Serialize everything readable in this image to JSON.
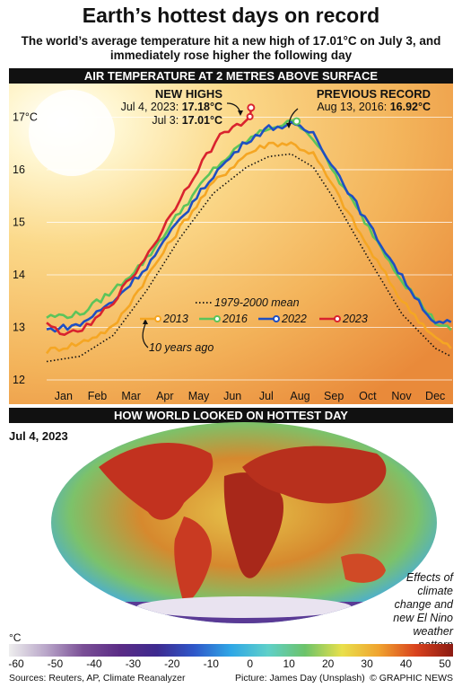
{
  "header": {
    "title": "Earth’s hottest days on record",
    "subtitle": "The world’s average temperature hit a new high of 17.01°C on July 3, and immediately rose higher the following day"
  },
  "chart_section": {
    "heading": "AIR TEMPERATURE AT 2 METRES ABOVE SURFACE"
  },
  "annotations": {
    "new_highs_heading": "NEW HIGHS",
    "jul4_label": "Jul 4, 2023:",
    "jul4_value": "17.18°C",
    "jul3_label": "Jul 3:",
    "jul3_value": "17.01°C",
    "previous_heading": "PREVIOUS RECORD",
    "previous_label": "Aug 13, 2016:",
    "previous_value": "16.92°C",
    "ten_years_ago": "10 years ago"
  },
  "chart_data": {
    "type": "line",
    "ylabel": "°C",
    "ylim": [
      12,
      17.4
    ],
    "yticks": [
      "12",
      "13",
      "14",
      "15",
      "16",
      "17°C"
    ],
    "xlim": [
      0,
      365
    ],
    "months": [
      "Jan",
      "Feb",
      "Mar",
      "Apr",
      "May",
      "Jun",
      "Jul",
      "Aug",
      "Sep",
      "Oct",
      "Nov",
      "Dec"
    ],
    "grid": "horizontal",
    "legend_position": "center-right",
    "series": [
      {
        "name": "1979-2000 mean",
        "color": "#111111",
        "style": "dotted",
        "x": [
          0,
          30,
          60,
          90,
          120,
          150,
          180,
          200,
          220,
          240,
          260,
          290,
          320,
          350,
          364
        ],
        "y": [
          12.35,
          12.45,
          12.85,
          13.7,
          14.7,
          15.55,
          16.05,
          16.25,
          16.3,
          16.05,
          15.4,
          14.3,
          13.25,
          12.6,
          12.45
        ]
      },
      {
        "name": "2013",
        "color": "#f5a623",
        "style": "solid",
        "x": [
          0,
          30,
          60,
          90,
          120,
          150,
          180,
          200,
          220,
          240,
          260,
          290,
          320,
          350,
          364
        ],
        "y": [
          12.55,
          12.7,
          13.0,
          13.95,
          14.9,
          15.75,
          16.3,
          16.5,
          16.5,
          16.3,
          15.6,
          14.5,
          13.5,
          12.8,
          12.6
        ]
      },
      {
        "name": "2016",
        "color": "#5cc45a",
        "style": "solid",
        "x": [
          0,
          30,
          60,
          90,
          120,
          150,
          180,
          200,
          225,
          240,
          260,
          290,
          320,
          350,
          364
        ],
        "y": [
          13.2,
          13.25,
          13.7,
          14.3,
          15.2,
          16.0,
          16.55,
          16.8,
          16.92,
          16.6,
          15.9,
          14.9,
          13.9,
          13.1,
          12.95
        ]
      },
      {
        "name": "2022",
        "color": "#1f4fc2",
        "style": "solid",
        "x": [
          0,
          30,
          60,
          90,
          120,
          150,
          180,
          200,
          220,
          240,
          260,
          290,
          320,
          350,
          364
        ],
        "y": [
          12.95,
          13.05,
          13.5,
          14.15,
          15.05,
          15.9,
          16.55,
          16.8,
          16.85,
          16.7,
          16.0,
          14.95,
          13.95,
          13.05,
          13.1
        ]
      },
      {
        "name": "2023",
        "color": "#d9232e",
        "style": "solid",
        "x": [
          0,
          20,
          40,
          60,
          80,
          100,
          120,
          140,
          160,
          175,
          183,
          184
        ],
        "y": [
          13.05,
          12.85,
          13.05,
          13.5,
          14.05,
          14.7,
          15.45,
          16.15,
          16.75,
          16.85,
          17.01,
          17.18
        ]
      }
    ],
    "legend_entries": [
      "1979-2000 mean",
      "2013",
      "2016",
      "2022",
      "2023"
    ]
  },
  "map_section": {
    "heading": "HOW WORLD LOOKED ON HOTTEST DAY",
    "date_label": "Jul 4, 2023",
    "caption": "Effects of climate change and new El Nino weather pattern",
    "scale_unit": "°C",
    "scale_ticks": [
      "-60",
      "-50",
      "-40",
      "-30",
      "-20",
      "-10",
      "0",
      "10",
      "20",
      "30",
      "40",
      "50"
    ],
    "scale_colors": [
      "#eeeeee",
      "#b9a6c9",
      "#7a4f96",
      "#5b2c86",
      "#3d2a8f",
      "#2f57c9",
      "#2fa7e6",
      "#5fd0c9",
      "#6cc36a",
      "#e9e04b",
      "#f0a32f",
      "#d9421e",
      "#8b1a12"
    ]
  },
  "footer": {
    "sources": "Sources: Reuters, AP, Climate Reanalyzer",
    "picture": "Picture: James Day (Unsplash)",
    "credit": "© GRAPHIC NEWS"
  },
  "watermark": "GRAPHIC NEWS"
}
